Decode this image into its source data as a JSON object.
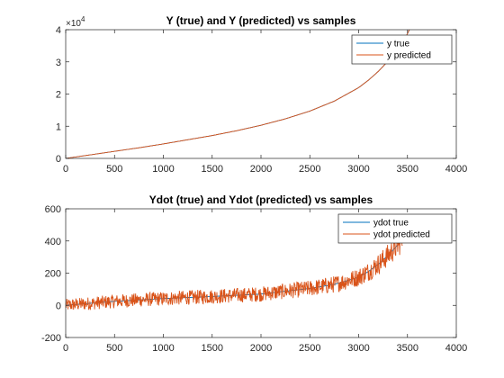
{
  "chart_data": [
    {
      "type": "line",
      "title": "Y (true) and Y (predicted) vs samples",
      "xlim": [
        0,
        4000
      ],
      "ylim": [
        0,
        40000
      ],
      "xticks": [
        0,
        500,
        1000,
        1500,
        2000,
        2500,
        3000,
        3500,
        4000
      ],
      "yticks": [
        0,
        10000,
        20000,
        30000,
        40000
      ],
      "ytick_labels": [
        "0",
        "1",
        "2",
        "3",
        "4"
      ],
      "y_exponent_base": "×10",
      "y_exponent_power": "4",
      "legend_position": "top-right",
      "series": [
        {
          "name": "y true",
          "color": "#0072BD",
          "x": [
            0,
            250,
            500,
            750,
            1000,
            1250,
            1500,
            1750,
            2000,
            2250,
            2500,
            2750,
            3000,
            3100,
            3200,
            3300,
            3400,
            3470,
            3520
          ],
          "y": [
            0,
            1100,
            2200,
            3300,
            4500,
            5800,
            7100,
            8600,
            10300,
            12300,
            14700,
            17800,
            22000,
            24300,
            27000,
            30200,
            33900,
            37000,
            40000
          ]
        },
        {
          "name": "y predicted",
          "color": "#D95319",
          "x": [
            0,
            250,
            500,
            750,
            1000,
            1250,
            1500,
            1750,
            2000,
            2250,
            2500,
            2750,
            3000,
            3100,
            3200,
            3300,
            3400,
            3470,
            3520
          ],
          "y": [
            0,
            1100,
            2200,
            3300,
            4500,
            5800,
            7100,
            8600,
            10300,
            12300,
            14700,
            17800,
            22000,
            24300,
            27000,
            30200,
            33900,
            37000,
            40000
          ]
        }
      ]
    },
    {
      "type": "line",
      "title": "Ydot (true) and Ydot (predicted) vs samples",
      "xlim": [
        0,
        4000
      ],
      "ylim": [
        -200,
        600
      ],
      "xticks": [
        0,
        500,
        1000,
        1500,
        2000,
        2500,
        3000,
        3500,
        4000
      ],
      "yticks": [
        -200,
        0,
        200,
        400,
        600
      ],
      "ytick_labels": [
        "-200",
        "0",
        "200",
        "400",
        "600"
      ],
      "legend_position": "top-right",
      "series": [
        {
          "name": "ydot true",
          "color": "#0072BD",
          "x": [
            0,
            500,
            1000,
            1500,
            2000,
            2250,
            2500,
            2750,
            3000,
            3100,
            3200,
            3300,
            3400,
            3450
          ],
          "y": [
            0,
            25,
            42,
            55,
            70,
            88,
            105,
            130,
            175,
            210,
            255,
            310,
            375,
            410
          ],
          "noise_amplitude": 0
        },
        {
          "name": "ydot predicted",
          "color": "#D95319",
          "x": [
            0,
            500,
            1000,
            1500,
            2000,
            2250,
            2500,
            2750,
            3000,
            3100,
            3200,
            3300,
            3400,
            3450
          ],
          "y": [
            0,
            25,
            42,
            55,
            70,
            88,
            105,
            130,
            175,
            210,
            255,
            310,
            375,
            410
          ],
          "noise_amplitude": 40
        }
      ]
    }
  ]
}
